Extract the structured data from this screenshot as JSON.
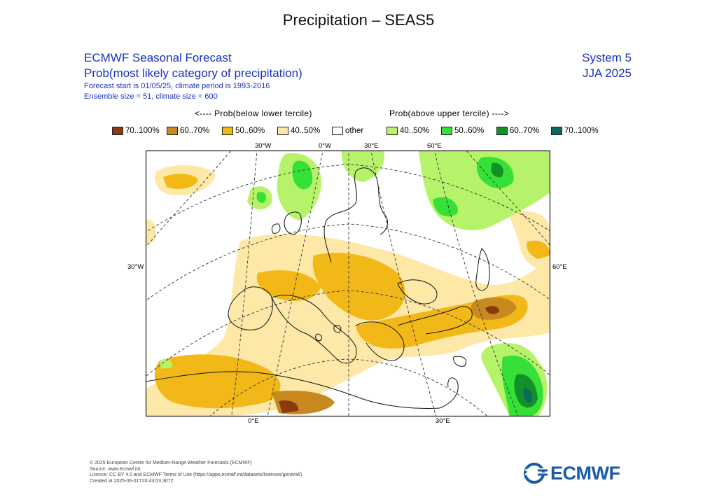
{
  "title": "Precipitation – SEAS5",
  "header": {
    "product": "ECMWF Seasonal Forecast",
    "subtitle": "Prob(most likely category of precipitation)",
    "forecast_start": "Forecast start is 01/05/25, climate period is 1993-2016",
    "ensemble": "Ensemble size = 51, climate size = 600",
    "system": "System 5",
    "season": "JJA 2025"
  },
  "legend": {
    "below_label": "<---- Prob(below lower tercile)",
    "above_label": "Prob(above upper tercile) ---->",
    "items": [
      {
        "label": "70..100%",
        "color": "#8b3a0e"
      },
      {
        "label": "60..70%",
        "color": "#c8891e"
      },
      {
        "label": "50..60%",
        "color": "#f2b817"
      },
      {
        "label": "40..50%",
        "color": "#fde8a8"
      },
      {
        "label": "other",
        "color": "#ffffff"
      },
      {
        "label": "40..50%",
        "color": "#b7f36a"
      },
      {
        "label": "50..60%",
        "color": "#36e036"
      },
      {
        "label": "60..70%",
        "color": "#12902a"
      },
      {
        "label": "70..100%",
        "color": "#0b6a5a"
      }
    ]
  },
  "map": {
    "top_labels": [
      "30°W",
      "0°W",
      "30°E",
      "60°E"
    ],
    "left_label": "30°W",
    "right_label": "60°E",
    "bottom_labels": [
      "0°E",
      "30°E"
    ]
  },
  "footer": {
    "line1": "© 2025 European Centre for Medium-Range Weather Forecasts (ECMWF)",
    "line2": "Source: www.ecmwf.int",
    "line3": "Licence: CC BY 4.0 and ECMWF Terms of Use (https://apps.ecmwf.int/datasets/licences/general/)",
    "line4": "Created at 2025-06-01T20:43:03.307Z"
  },
  "logo": {
    "text": "ECMWF",
    "color": "#1b5aa5"
  }
}
